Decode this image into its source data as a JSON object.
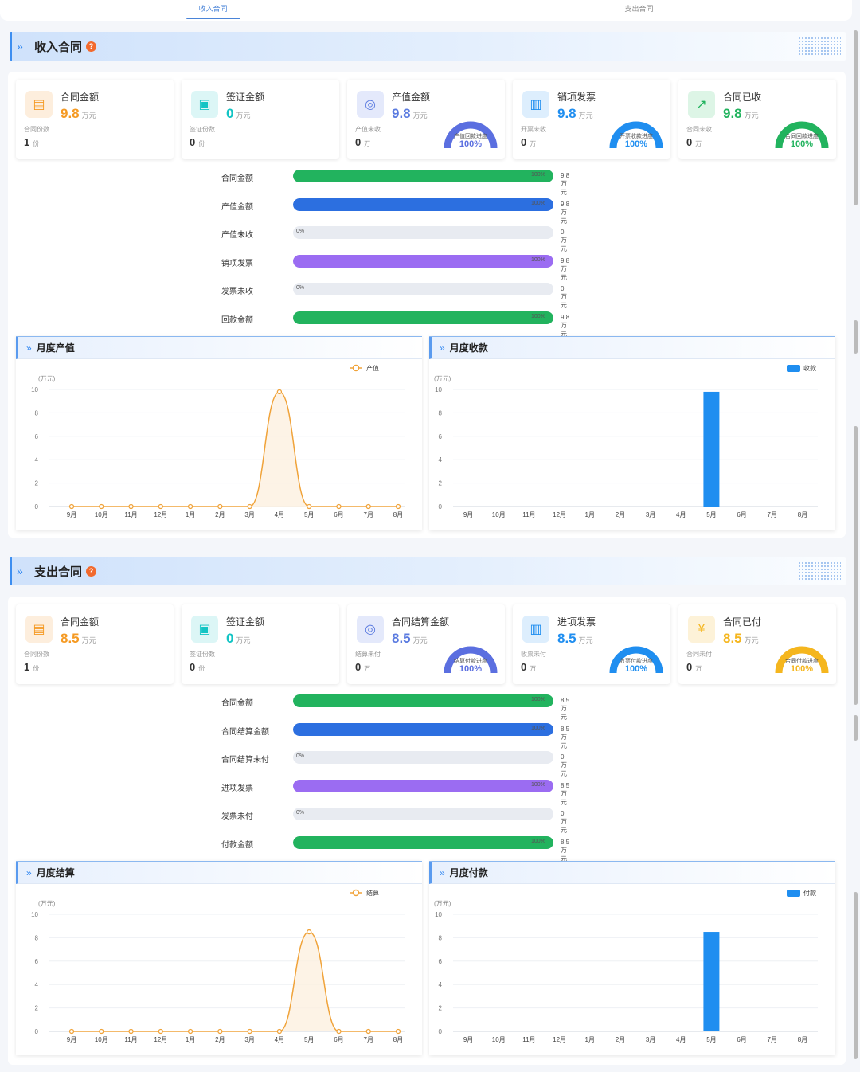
{
  "tabs": [
    {
      "label": "收入合同",
      "active": true
    },
    {
      "label": "支出合同",
      "active": false
    }
  ],
  "sections": [
    {
      "title": "收入合同",
      "help": "?",
      "cards": [
        {
          "icon": "contract-doc-icon",
          "title": "合同金额",
          "value": "9.8",
          "unit": "万元",
          "sub_label": "合同份数",
          "sub_value": "1",
          "sub_unit": "份",
          "color": "#f59a23",
          "icon_bg": "#fdeedd"
        },
        {
          "icon": "certificate-icon",
          "title": "签证金额",
          "value": "0",
          "unit": "万元",
          "sub_label": "签证份数",
          "sub_value": "0",
          "sub_unit": "份",
          "color": "#12c4c4",
          "icon_bg": "#dcf6f6"
        },
        {
          "icon": "coins-icon",
          "title": "产值金额",
          "value": "9.8",
          "unit": "万元",
          "sub_label": "产值未收",
          "sub_value": "0",
          "sub_unit": "万",
          "color": "#5b7be0",
          "icon_bg": "#e4e9fb",
          "gauge": {
            "label": "产值回款进度",
            "percent": "100%",
            "progress": 1.0,
            "color": "#5b6fe0"
          }
        },
        {
          "icon": "chart-bars-icon",
          "title": "销项发票",
          "value": "9.8",
          "unit": "万元",
          "sub_label": "开票未收",
          "sub_value": "0",
          "sub_unit": "万",
          "color": "#1f8ef0",
          "icon_bg": "#ddeefd",
          "gauge": {
            "label": "开票收款进度",
            "percent": "100%",
            "progress": 1.0,
            "color": "#1f8ef0"
          }
        },
        {
          "icon": "growth-chart-icon",
          "title": "合同已收",
          "value": "9.8",
          "unit": "万元",
          "sub_label": "合同未收",
          "sub_value": "0",
          "sub_unit": "万",
          "color": "#22b35e",
          "icon_bg": "#ddf5e6",
          "gauge": {
            "label": "合同回款进度",
            "percent": "100%",
            "progress": 1.0,
            "color": "#22b35e"
          }
        }
      ],
      "bars": [
        {
          "label": "合同金额",
          "percent": "100%",
          "fraction": 1.0,
          "value": "9.8万元",
          "color": "#22b35e"
        },
        {
          "label": "产值金额",
          "percent": "100%",
          "fraction": 1.0,
          "value": "9.8万元",
          "color": "#2c6fe0"
        },
        {
          "label": "产值未收",
          "percent": "0%",
          "fraction": 0.0,
          "value": "0万元",
          "color": "#e8ebf1"
        },
        {
          "label": "销项发票",
          "percent": "100%",
          "fraction": 1.0,
          "value": "9.8万元",
          "color": "#9b6cf2"
        },
        {
          "label": "发票未收",
          "percent": "0%",
          "fraction": 0.0,
          "value": "0万元",
          "color": "#e8ebf1"
        },
        {
          "label": "回款金额",
          "percent": "100%",
          "fraction": 1.0,
          "value": "9.8万元",
          "color": "#22b35e"
        }
      ],
      "charts": [
        {
          "title": "月度产值"
        },
        {
          "title": "月度收款"
        }
      ]
    },
    {
      "title": "支出合同",
      "help": "?",
      "cards": [
        {
          "icon": "contract-doc-icon",
          "title": "合同金额",
          "value": "8.5",
          "unit": "万元",
          "sub_label": "合同份数",
          "sub_value": "1",
          "sub_unit": "份",
          "color": "#f59a23",
          "icon_bg": "#fdeedd"
        },
        {
          "icon": "certificate-icon",
          "title": "签证金额",
          "value": "0",
          "unit": "万元",
          "sub_label": "签证份数",
          "sub_value": "0",
          "sub_unit": "份",
          "color": "#12c4c4",
          "icon_bg": "#dcf6f6"
        },
        {
          "icon": "coins-icon",
          "title": "合同结算金额",
          "value": "8.5",
          "unit": "万元",
          "sub_label": "结算未付",
          "sub_value": "0",
          "sub_unit": "万",
          "color": "#5b7be0",
          "icon_bg": "#e4e9fb",
          "gauge": {
            "label": "结算付款进度",
            "percent": "100%",
            "progress": 1.0,
            "color": "#5b6fe0"
          }
        },
        {
          "icon": "chart-bars-icon",
          "title": "进项发票",
          "value": "8.5",
          "unit": "万元",
          "sub_label": "收票未付",
          "sub_value": "0",
          "sub_unit": "万",
          "color": "#1f8ef0",
          "icon_bg": "#ddeefd",
          "gauge": {
            "label": "收票付款进度",
            "percent": "100%",
            "progress": 1.0,
            "color": "#1f8ef0"
          }
        },
        {
          "icon": "yen-wallet-icon",
          "title": "合同已付",
          "value": "8.5",
          "unit": "万元",
          "sub_label": "合同未付",
          "sub_value": "0",
          "sub_unit": "万",
          "color": "#f5b61e",
          "icon_bg": "#fdf2d8",
          "gauge": {
            "label": "合同付款进度",
            "percent": "100%",
            "progress": 1.0,
            "color": "#f5b61e"
          }
        }
      ],
      "bars": [
        {
          "label": "合同金额",
          "percent": "100%",
          "fraction": 1.0,
          "value": "8.5万元",
          "color": "#22b35e"
        },
        {
          "label": "合同结算金额",
          "percent": "100%",
          "fraction": 1.0,
          "value": "8.5万元",
          "color": "#2c6fe0"
        },
        {
          "label": "合同结算未付",
          "percent": "0%",
          "fraction": 0.0,
          "value": "0万元",
          "color": "#e8ebf1"
        },
        {
          "label": "进项发票",
          "percent": "100%",
          "fraction": 1.0,
          "value": "8.5万元",
          "color": "#9b6cf2"
        },
        {
          "label": "发票未付",
          "percent": "0%",
          "fraction": 0.0,
          "value": "0万元",
          "color": "#e8ebf1"
        },
        {
          "label": "付款金额",
          "percent": "100%",
          "fraction": 1.0,
          "value": "8.5万元",
          "color": "#22b35e"
        }
      ],
      "charts": [
        {
          "title": "月度结算"
        },
        {
          "title": "月度付款"
        }
      ]
    }
  ],
  "chart_data": [
    {
      "type": "line",
      "title": "月度产值",
      "unit_label": "(万元)",
      "categories": [
        "9月",
        "10月",
        "11月",
        "12月",
        "1月",
        "2月",
        "3月",
        "4月",
        "5月",
        "6月",
        "7月",
        "8月"
      ],
      "series": [
        {
          "name": "产值",
          "values": [
            0,
            0,
            0,
            0,
            0,
            0,
            0,
            9.8,
            0,
            0,
            0,
            0
          ],
          "color": "#f0a33a"
        }
      ],
      "yticks": [
        0,
        2,
        4,
        6,
        8,
        10
      ],
      "ylim": [
        0,
        10
      ],
      "legend": "top-right"
    },
    {
      "type": "bar",
      "title": "月度收款",
      "unit_label": "(万元)",
      "categories": [
        "9月",
        "10月",
        "11月",
        "12月",
        "1月",
        "2月",
        "3月",
        "4月",
        "5月",
        "6月",
        "7月",
        "8月"
      ],
      "series": [
        {
          "name": "收款",
          "values": [
            0,
            0,
            0,
            0,
            0,
            0,
            0,
            0,
            9.8,
            0,
            0,
            0
          ],
          "color": "#1f8ef0"
        }
      ],
      "yticks": [
        0,
        2,
        4,
        6,
        8,
        10
      ],
      "ylim": [
        0,
        10
      ],
      "legend": "top-right"
    },
    {
      "type": "line",
      "title": "月度结算",
      "unit_label": "(万元)",
      "categories": [
        "9月",
        "10月",
        "11月",
        "12月",
        "1月",
        "2月",
        "3月",
        "4月",
        "5月",
        "6月",
        "7月",
        "8月"
      ],
      "series": [
        {
          "name": "结算",
          "values": [
            0,
            0,
            0,
            0,
            0,
            0,
            0,
            0,
            8.5,
            0,
            0,
            0
          ],
          "color": "#f0a33a"
        }
      ],
      "yticks": [
        0,
        2,
        4,
        6,
        8,
        10
      ],
      "ylim": [
        0,
        10
      ],
      "legend": "top-right"
    },
    {
      "type": "bar",
      "title": "月度付款",
      "unit_label": "(万元)",
      "categories": [
        "9月",
        "10月",
        "11月",
        "12月",
        "1月",
        "2月",
        "3月",
        "4月",
        "5月",
        "6月",
        "7月",
        "8月"
      ],
      "series": [
        {
          "name": "付款",
          "values": [
            0,
            0,
            0,
            0,
            0,
            0,
            0,
            0,
            8.5,
            0,
            0,
            0
          ],
          "color": "#1f8ef0"
        }
      ],
      "yticks": [
        0,
        2,
        4,
        6,
        8,
        10
      ],
      "ylim": [
        0,
        10
      ],
      "legend": "top-right"
    }
  ]
}
